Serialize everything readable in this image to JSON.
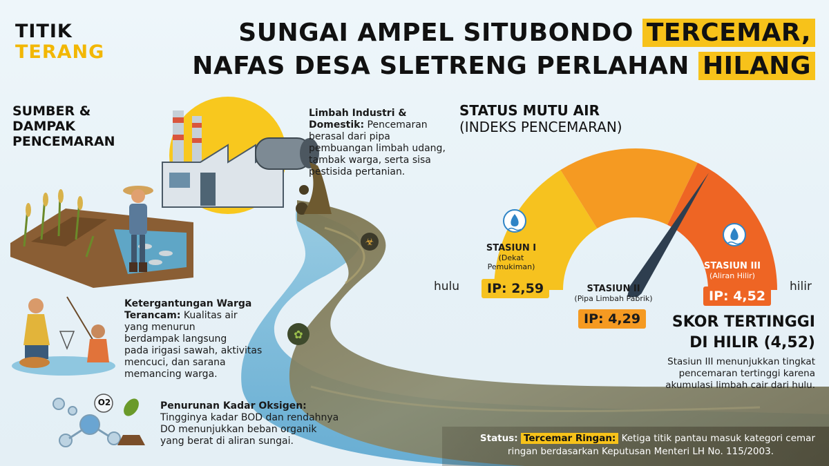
{
  "brand": {
    "line1": "TITIK",
    "line2": "TERANG"
  },
  "headline": {
    "l1_text": "SUNGAI AMPEL SITUBONDO",
    "l1_highlight": "TERCEMAR,",
    "l2_text": "NAFAS DESA SLETRENG PERLAHAN",
    "l2_highlight": "HILANG"
  },
  "sources": {
    "title_l1": "SUMBER &",
    "title_l2": "DAMPAK",
    "title_l3": "PENCEMARAN",
    "industry_bold_1": "Limbah Industri &",
    "industry_bold_2": "Domestik:",
    "industry_l1": "Pencemaran",
    "industry_l2": "berasal dari pipa",
    "industry_l3": "pembuangan limbah udang,",
    "industry_l4": "tambak warga, serta sisa",
    "industry_l5": "pestisida pertanian.",
    "dep_bold_1": "Ketergantungan Warga",
    "dep_bold_2": "Terancam:",
    "dep_l1": "Kualitas air",
    "dep_l2": "yang menurun",
    "dep_l3": "berdampak langsung",
    "dep_l4": "pada irigasi sawah, aktivitas",
    "dep_l5": "mencuci, dan sarana",
    "dep_l6": "memancing warga.",
    "oxy_bold": "Penurunan Kadar Oksigen:",
    "oxy_l1": "Tingginya kadar BOD dan rendahnya",
    "oxy_l2": "DO menunjukkan beban organik",
    "oxy_l3": "yang berat di aliran sungai.",
    "o2_label": "O2"
  },
  "gauge": {
    "title_l1": "STATUS MUTU AIR",
    "title_l2": "(INDEKS PENCEMARAN)",
    "left_end": "hulu",
    "right_end": "hilir",
    "stations": [
      {
        "name": "STASIUN I",
        "sub": "(Dekat",
        "sub2": "Pemukiman)",
        "ip": "IP: 2,59",
        "value": 2.59
      },
      {
        "name": "STASIUN II",
        "sub": "(Pipa Limbah Pabrik)",
        "ip": "IP: 4,29",
        "value": 4.29
      },
      {
        "name": "STASIUN III",
        "sub": "(Aliran Hilir)",
        "ip": "IP: 4,52",
        "value": 4.52
      }
    ],
    "colors": {
      "yellow": "#f6c21f",
      "orange": "#f59a22",
      "deep_orange": "#ee6524",
      "needle": "#2e3e4f"
    }
  },
  "score": {
    "title_l1": "SKOR TERTINGGI",
    "title_l2": "DI HILIR (4,52)",
    "desc_l1": "Stasiun III menunjukkan tingkat",
    "desc_l2": "pencemaran tertinggi karena",
    "desc_l3": "akumulasi limbah cair dari hulu."
  },
  "status": {
    "label": "Status:",
    "tag": "Tercemar Ringan:",
    "text_l1": "Ketiga titik pantau masuk kategori cemar",
    "text_l2": "ringan berdasarkan Keputusan Menteri LH No. 115/2003."
  }
}
